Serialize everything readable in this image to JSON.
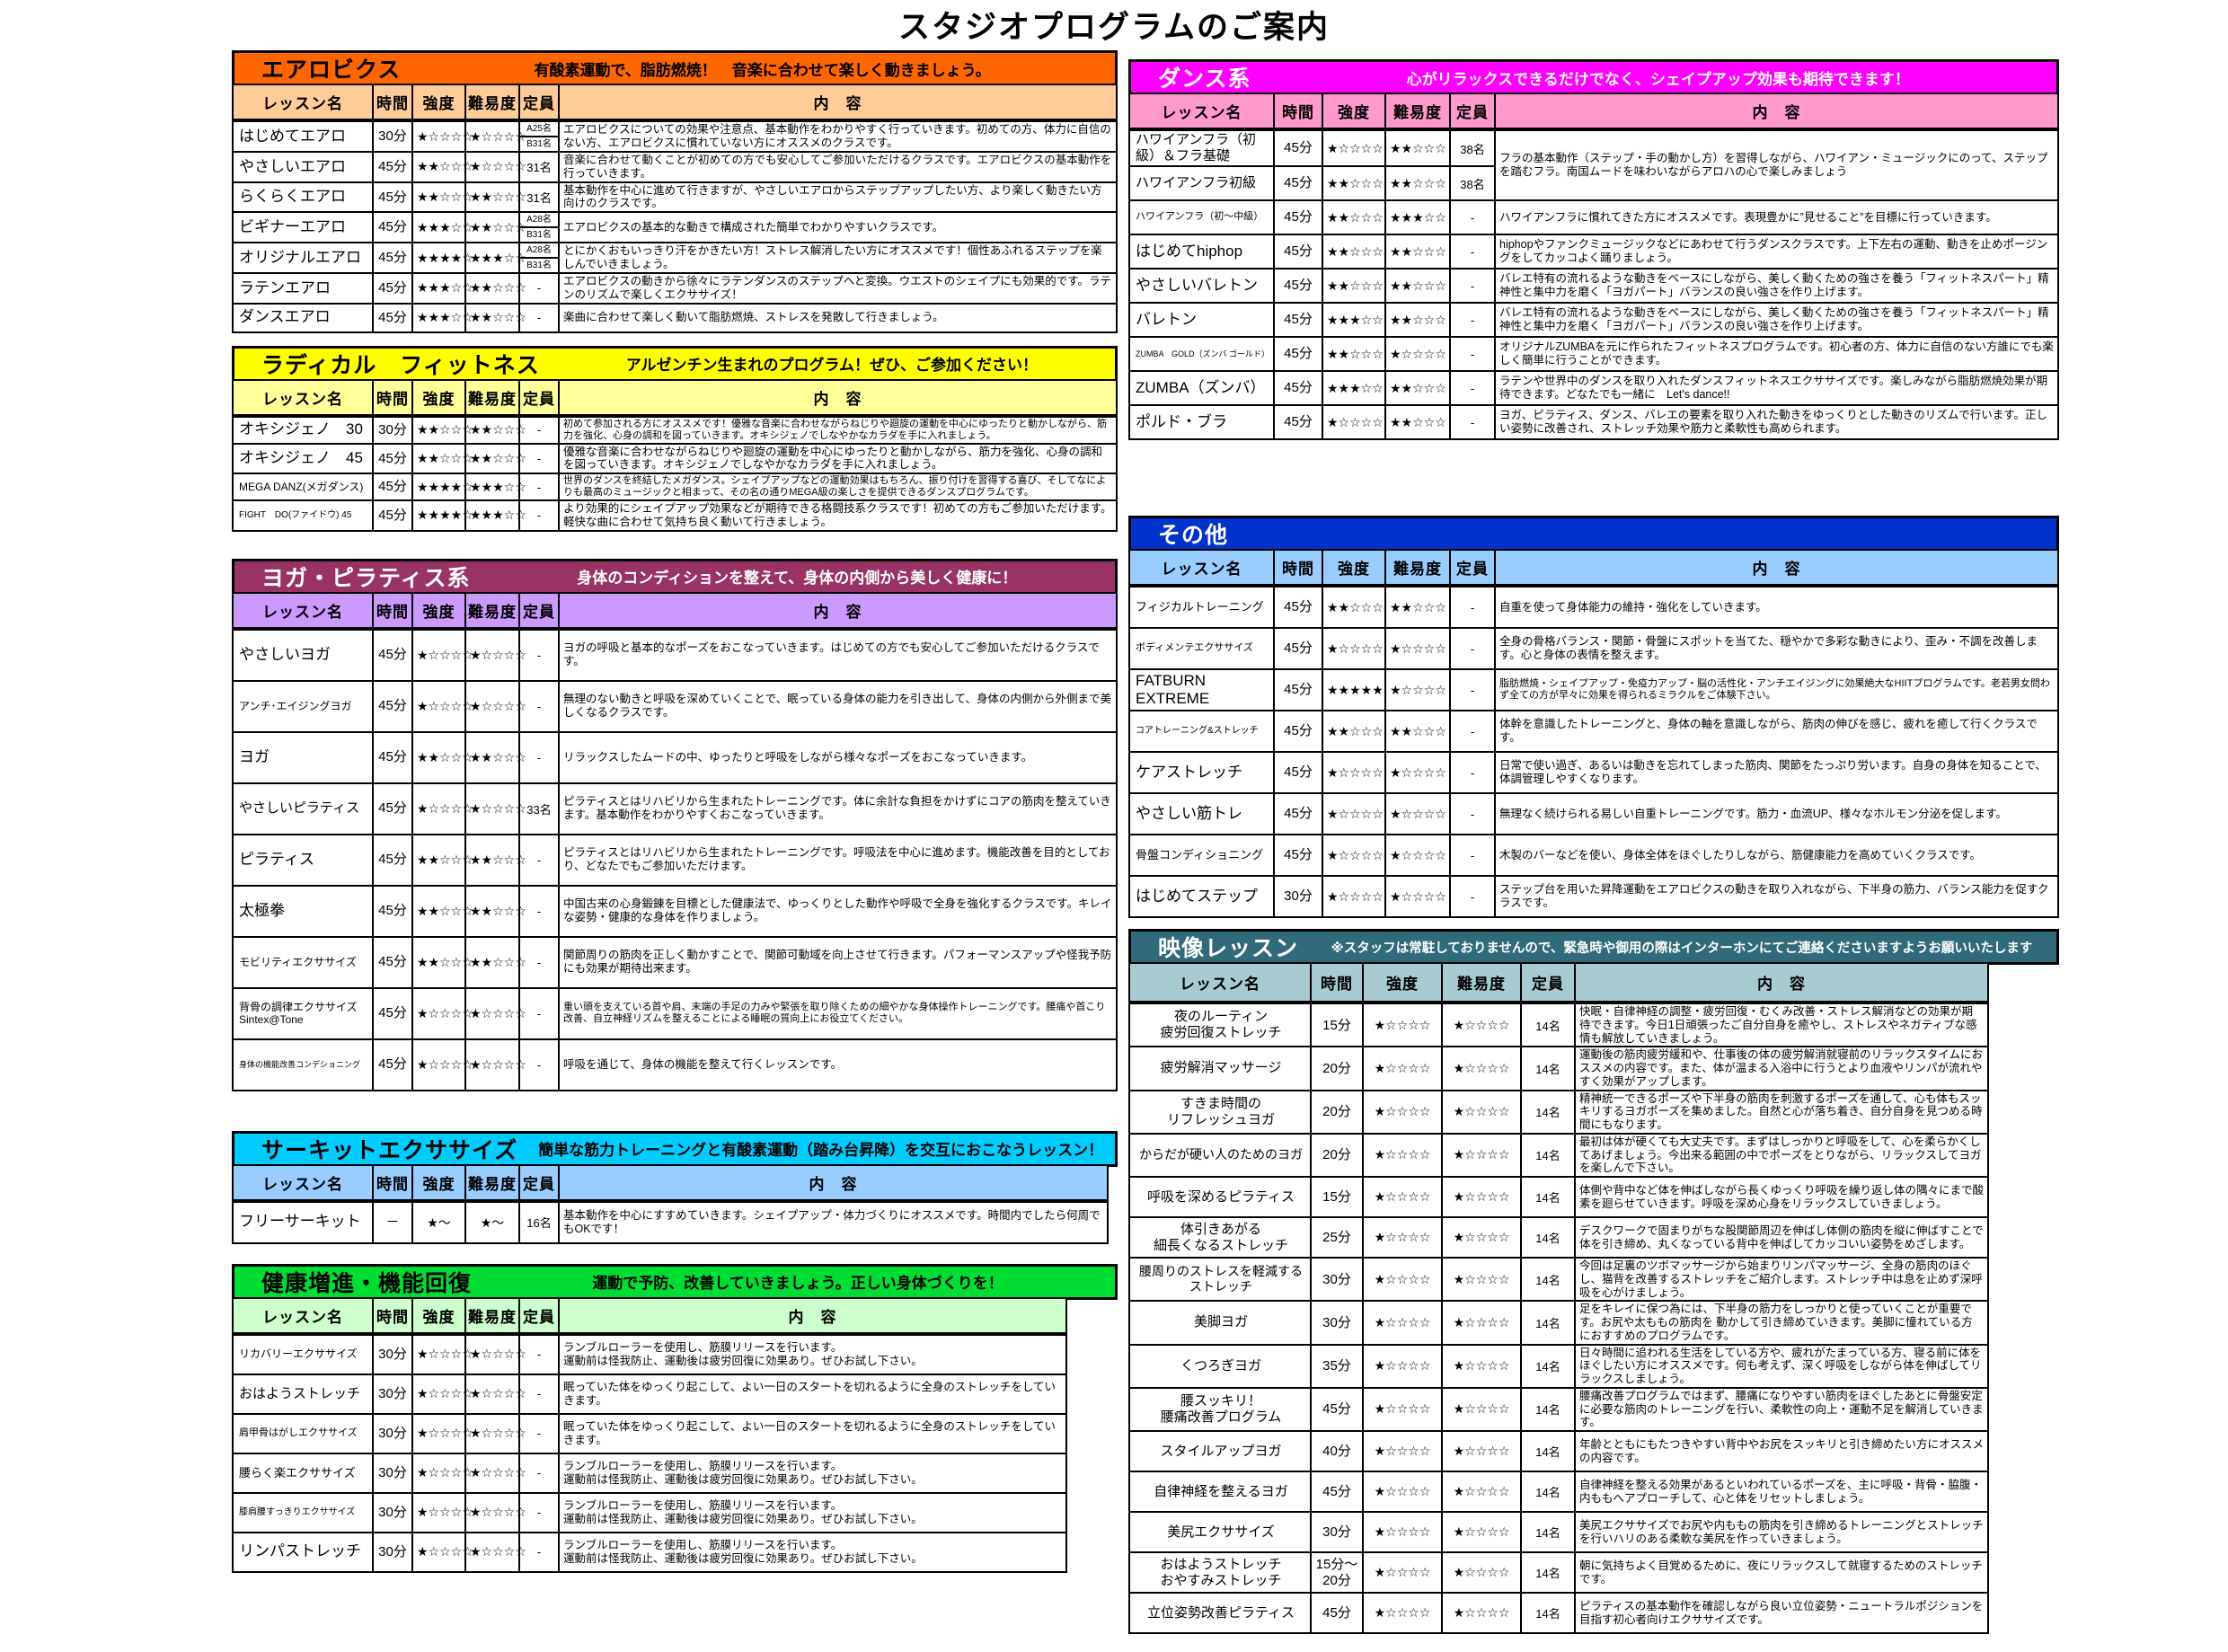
{
  "title": "スタジオプログラムのご案内",
  "columns": [
    "レッスン名",
    "時間",
    "強度",
    "難易度",
    "定員",
    "内　容"
  ],
  "sections": [
    {
      "id": "aerobics",
      "side": "left",
      "title": "エアロビクス",
      "subtitle": "有酸素運動で、脂肪燃焼！　音楽に合わせて楽しく動きましょう。",
      "colors": {
        "header_bg": "#ff6600",
        "header_fg": "#000000",
        "colhead_bg": "#ffcc99",
        "colhead_fg": "#000000"
      },
      "rows": [
        {
          "name": "はじめてエアロ",
          "time": "30分",
          "intensity": "★☆☆☆☆",
          "difficulty": "★☆☆☆☆",
          "capacity": [
            "A25名",
            "B31名"
          ],
          "content": "エアロビクスについての効果や注意点、基本動作をわかりやすく行っていきます。初めての方、体力に自信のない方、エアロビクスに慣れていない方にオススメのクラスです。"
        },
        {
          "name": "やさしいエアロ",
          "time": "45分",
          "intensity": "★★☆☆☆",
          "difficulty": "★☆☆☆☆",
          "capacity": "31名",
          "content": "音楽に合わせて動くことが初めての方でも安心してご参加いただけるクラスです。エアロビクスの基本動作を行っていきます。"
        },
        {
          "name": "らくらくエアロ",
          "time": "45分",
          "intensity": "★★☆☆☆",
          "difficulty": "★★☆☆☆",
          "capacity": "31名",
          "content": "基本動作を中心に進めて行きますが、やさしいエアロからステップアップしたい方、より楽しく動きたい方向けのクラスです。"
        },
        {
          "name": "ビギナーエアロ",
          "time": "45分",
          "intensity": "★★★☆☆",
          "difficulty": "★★☆☆☆",
          "capacity": [
            "A28名",
            "B31名"
          ],
          "content": "エアロビクスの基本的な動きで構成された簡単でわかりやすいクラスです。"
        },
        {
          "name": "オリジナルエアロ",
          "time": "45分",
          "intensity": "★★★★☆",
          "difficulty": "★★★☆☆",
          "capacity": [
            "A28名",
            "B31名"
          ],
          "content": "とにかくおもいっきり汗をかきたい方！ストレス解消したい方にオススメです！個性あふれるステップを楽しんでいきましょう。"
        },
        {
          "name": "ラテンエアロ",
          "time": "45分",
          "intensity": "★★★☆☆",
          "difficulty": "★★☆☆☆",
          "capacity": "-",
          "content": "エアロビクスの動きから徐々にラテンダンスのステップへと変換。ウエストのシェイプにも効果的です。ラテンのリズムで楽しくエクササイズ！"
        },
        {
          "name": "ダンスエアロ",
          "time": "45分",
          "intensity": "★★★☆☆",
          "difficulty": "★★☆☆☆",
          "capacity": "-",
          "content": "楽曲に合わせて楽しく動いて脂肪燃焼、ストレスを発散して行きましょう。"
        }
      ]
    },
    {
      "id": "radical",
      "side": "left",
      "title": "ラディカル　フィットネス",
      "subtitle": "アルゼンチン生まれのプログラム！ぜひ、ご参加ください！",
      "colors": {
        "header_bg": "#ffff00",
        "header_fg": "#000000",
        "colhead_bg": "#ffff99",
        "colhead_fg": "#000000"
      },
      "rows": [
        {
          "name": "オキシジェノ　30",
          "time": "30分",
          "intensity": "★★☆☆☆",
          "difficulty": "★★☆☆☆",
          "capacity": "-",
          "content": "初めて参加される方にオススメです！優雅な音楽に合わせながらねじりや廻旋の運動を中心にゆったりと動かしながら、筋力を強化、心身の調和を図っていきます。オキシジェノでしなやかなカラダを手に入れましょう。"
        },
        {
          "name": "オキシジェノ　45",
          "time": "45分",
          "intensity": "★★☆☆☆",
          "difficulty": "★★☆☆☆",
          "capacity": "-",
          "content": "優雅な音楽に合わせながらねじりや廻旋の運動を中心にゆったりと動かしながら、筋力を強化、心身の調和を図っていきます。オキシジェノでしなやかなカラダを手に入れましょう。"
        },
        {
          "name": "MEGA DANZ(メガダンス)",
          "time": "45分",
          "intensity": "★★★★☆",
          "difficulty": "★★★☆☆",
          "capacity": "-",
          "content": "世界のダンスを終結したメガダンス。シェイプアップなどの運動効果はもちろん、振り付けを習得する喜び、そしてなによりも最高のミュージックと相まって、その名の通りMEGA級の楽しさを提供できるダンスプログラムです。"
        },
        {
          "name": "FIGHT　DO(ファイドウ) 45",
          "time": "45分",
          "intensity": "★★★★☆",
          "difficulty": "★★★☆☆",
          "capacity": "-",
          "content": "より効果的にシェイプアップ効果などが期待できる格闘技系クラスです！初めての方もご参加いただけます。軽快な曲に合わせて気持ち良く動いて行きましょう。"
        }
      ]
    },
    {
      "id": "yoga",
      "side": "left",
      "title": "ヨガ・ピラティス系",
      "subtitle": "身体のコンディションを整えて、身体の内側から美しく健康に！",
      "colors": {
        "header_bg": "#993366",
        "header_fg": "#ffffff",
        "colhead_bg": "#cc99ff",
        "colhead_fg": "#000000"
      },
      "rows": [
        {
          "name": "やさしいヨガ",
          "time": "45分",
          "intensity": "★☆☆☆☆",
          "difficulty": "★☆☆☆☆",
          "capacity": "-",
          "content": "ヨガの呼吸と基本的なポーズをおこなっていきます。はじめての方でも安心してご参加いただけるクラスです。"
        },
        {
          "name": "アンチ･エイジングヨガ",
          "time": "45分",
          "intensity": "★☆☆☆☆",
          "difficulty": "★☆☆☆☆",
          "capacity": "-",
          "content": "無理のない動きと呼吸を深めていくことで、眠っている身体の能力を引き出して、身体の内側から外側まで美しくなるクラスです。"
        },
        {
          "name": "ヨガ",
          "time": "45分",
          "intensity": "★★☆☆☆",
          "difficulty": "★★☆☆☆",
          "capacity": "-",
          "content": "リラックスしたムードの中、ゆったりと呼吸をしながら様々なポーズをおこなっていきます。"
        },
        {
          "name": "やさしいピラティス",
          "time": "45分",
          "intensity": "★☆☆☆☆",
          "difficulty": "★☆☆☆☆",
          "capacity": "33名",
          "content": "ピラティスとはリハビリから生まれたトレーニングです。体に余計な負担をかけずにコアの筋肉を整えていきます。基本動作をわかりやすくおこなっていきます。"
        },
        {
          "name": "ピラティス",
          "time": "45分",
          "intensity": "★★☆☆☆",
          "difficulty": "★★☆☆☆",
          "capacity": "-",
          "content": "ピラティスとはリハビリから生まれたトレーニングです。呼吸法を中心に進めます。機能改善を目的としており、どなたでもご参加いただけます。"
        },
        {
          "name": "太極拳",
          "time": "45分",
          "intensity": "★★☆☆☆",
          "difficulty": "★★☆☆☆",
          "capacity": "-",
          "content": "中国古来の心身鍛錬を目標とした健康法で、ゆっくりとした動作や呼吸で全身を強化するクラスです。キレイな姿勢・健康的な身体を作りましょう。"
        },
        {
          "name": "モビリティエクササイズ",
          "time": "45分",
          "intensity": "★★☆☆☆",
          "difficulty": "★★☆☆☆",
          "capacity": "-",
          "content": "関節周りの筋肉を正しく動かすことで、関節可動域を向上させて行きます。パフォーマンスアップや怪我予防にも効果が期待出来ます。"
        },
        {
          "name": "背骨の調律エクササイズ\nSintex@Tone",
          "time": "45分",
          "intensity": "★☆☆☆☆",
          "difficulty": "★☆☆☆☆",
          "capacity": "-",
          "content": "重い頭を支えている首や肩、末端の手足の力みや緊張を取り除くための細やかな身体操作トレーニングです。腰痛や首こり改善、自立神経リズムを整えることによる睡眠の質向上にお役立てください。"
        },
        {
          "name": "身体の機能改善コンデショニング",
          "time": "45分",
          "intensity": "★☆☆☆☆",
          "difficulty": "★☆☆☆☆",
          "capacity": "-",
          "content": "呼吸を通じて、身体の機能を整えて行くレッスンです。"
        }
      ]
    },
    {
      "id": "circuit",
      "side": "left",
      "title": "サーキットエクササイズ",
      "subtitle": "簡単な筋力トレーニングと有酸素運動（踏み台昇降）を交互におこなうレッスン！",
      "colors": {
        "header_bg": "#00ccff",
        "header_fg": "#000000",
        "colhead_bg": "#99ccff",
        "colhead_fg": "#000000"
      },
      "rows": [
        {
          "name": "フリーサーキット",
          "time": "－",
          "intensity": "★～",
          "difficulty": "★～",
          "capacity": "16名",
          "content": "基本動作を中心にすすめていきます。シェイプアップ・体力づくりにオススメです。時間内でしたら何周でもOKです！"
        }
      ]
    },
    {
      "id": "health",
      "side": "left",
      "title": "健康増進・機能回復",
      "subtitle": "運動で予防、改善していきましょう。正しい身体づくりを！",
      "colors": {
        "header_bg": "#00dd33",
        "header_fg": "#000000",
        "colhead_bg": "#ccffcc",
        "colhead_fg": "#000000"
      },
      "rows": [
        {
          "name": "リカバリーエクササイズ",
          "time": "30分",
          "intensity": "★☆☆☆☆",
          "difficulty": "★☆☆☆☆",
          "capacity": "-",
          "content": "ランブルローラーを使用し、筋膜リリースを行います。\n運動前は怪我防止、運動後は疲労回復に効果あり。ぜひお試し下さい。"
        },
        {
          "name": "おはようストレッチ",
          "time": "30分",
          "intensity": "★☆☆☆☆",
          "difficulty": "★☆☆☆☆",
          "capacity": "-",
          "content": "眠っていた体をゆっくり起こして、よい一日のスタートを切れるように全身のストレッチをしていきます。"
        },
        {
          "name": "肩甲骨はがしエクササイズ",
          "time": "30分",
          "intensity": "★☆☆☆☆",
          "difficulty": "★☆☆☆☆",
          "capacity": "-",
          "content": "眠っていた体をゆっくり起こして、よい一日のスタートを切れるように全身のストレッチをしていきます。"
        },
        {
          "name": "腰らく楽エクササイズ",
          "time": "30分",
          "intensity": "★☆☆☆☆",
          "difficulty": "★☆☆☆☆",
          "capacity": "-",
          "content": "ランブルローラーを使用し、筋膜リリースを行います。\n運動前は怪我防止、運動後は疲労回復に効果あり。ぜひお試し下さい。"
        },
        {
          "name": "膝肩腰すっきりエクササイズ",
          "time": "30分",
          "intensity": "★☆☆☆☆",
          "difficulty": "★☆☆☆☆",
          "capacity": "-",
          "content": "ランブルローラーを使用し、筋膜リリースを行います。\n運動前は怪我防止、運動後は疲労回復に効果あり。ぜひお試し下さい。"
        },
        {
          "name": "リンパストレッチ",
          "time": "30分",
          "intensity": "★☆☆☆☆",
          "difficulty": "★☆☆☆☆",
          "capacity": "-",
          "content": "ランブルローラーを使用し、筋膜リリースを行います。\n運動前は怪我防止、運動後は疲労回復に効果あり。ぜひお試し下さい。"
        }
      ]
    },
    {
      "id": "dance",
      "side": "right",
      "title": "ダンス系",
      "subtitle": "心がリラックスできるだけでなく、シェイプアップ効果も期待できます！",
      "colors": {
        "header_bg": "#ff00ff",
        "header_fg": "#ffffff",
        "colhead_bg": "#ff99cc",
        "colhead_fg": "#000000"
      },
      "rows": [
        {
          "name": "ハワイアンフラ（初\n級）＆フラ基礎",
          "time": "45分",
          "intensity": "★☆☆☆☆",
          "difficulty": "★★☆☆☆",
          "capacity": "38名",
          "content": "フラの基本動作（ステップ・手の動かし方）を習得しながら、ハワイアン・ミュージックにのって、ステップを踏むフラ。南国ムードを味わいながらアロハの心で楽しみましょう",
          "content_rowspan": 2
        },
        {
          "name": "ハワイアンフラ初級",
          "time": "45分",
          "intensity": "★★☆☆☆",
          "difficulty": "★★☆☆☆",
          "capacity": "38名",
          "content": null
        },
        {
          "name": "ハワイアンフラ（初～中級）",
          "time": "45分",
          "intensity": "★★☆☆☆",
          "difficulty": "★★★☆☆",
          "capacity": "-",
          "content": "ハワイアンフラに慣れてきた方にオススメです。表現豊かに”見せること”を目標に行っていきます。"
        },
        {
          "name": "はじめてhiphop",
          "time": "45分",
          "intensity": "★★☆☆☆",
          "difficulty": "★★☆☆☆",
          "capacity": "-",
          "content": "hiphopやファンクミュージックなどにあわせて行うダンスクラスです。上下左右の運動、動きを止めポージングをしてカッコよく踊りましょう。"
        },
        {
          "name": "やさしいバレトン",
          "time": "45分",
          "intensity": "★★☆☆☆",
          "difficulty": "★★☆☆☆",
          "capacity": "-",
          "content": "バレエ特有の流れるような動きをベースにしながら、美しく動くための強さを養う「フィットネスパート」精神性と集中力を磨く「ヨガパート」バランスの良い強さを作り上げます。"
        },
        {
          "name": "バレトン",
          "time": "45分",
          "intensity": "★★★☆☆",
          "difficulty": "★★☆☆☆",
          "capacity": "-",
          "content": "バレエ特有の流れるような動きをベースにしながら、美しく動くための強さを養う「フィットネスパート」精神性と集中力を磨く「ヨガパート」バランスの良い強さを作り上げます。"
        },
        {
          "name": "ZUMBA　GOLD（ズンバ ゴールド）",
          "time": "45分",
          "intensity": "★★☆☆☆",
          "difficulty": "★☆☆☆☆",
          "capacity": "-",
          "content": "オリジナルZUMBAを元に作られたフィットネスプログラムです。初心者の方、体力に自信のない方誰にでも楽しく簡単に行うことができます。"
        },
        {
          "name": "ZUMBA（ズンバ）",
          "time": "45分",
          "intensity": "★★★☆☆",
          "difficulty": "★★☆☆☆",
          "capacity": "-",
          "content": "ラテンや世界中のダンスを取り入れたダンスフィットネスエクササイズです。楽しみながら脂肪燃焼効果が期待できます。どなたでも一緒に　Let's dance!!"
        },
        {
          "name": "ポルド・ブラ",
          "time": "45分",
          "intensity": "★☆☆☆☆",
          "difficulty": "★★☆☆☆",
          "capacity": "-",
          "content": "ヨガ、ピラティス、ダンス、バレエの要素を取り入れた動きをゆっくりとした動きのリズムで行います。正しい姿勢に改善され、ストレッチ効果や筋力と柔軟性も高められます。"
        }
      ]
    },
    {
      "id": "others",
      "side": "right",
      "title": "その他",
      "subtitle": "",
      "colors": {
        "header_bg": "#0033cc",
        "header_fg": "#ffffff",
        "colhead_bg": "#99ccff",
        "colhead_fg": "#000000"
      },
      "rows": [
        {
          "name": "フィジカルトレーニング",
          "time": "45分",
          "intensity": "★★☆☆☆",
          "difficulty": "★★☆☆☆",
          "capacity": "-",
          "content": "自重を使って身体能力の維持・強化をしていきます。"
        },
        {
          "name": "ボディメンテエクササイズ",
          "time": "45分",
          "intensity": "★☆☆☆☆",
          "difficulty": "★☆☆☆☆",
          "capacity": "-",
          "content": "全身の骨格バランス・関節・骨盤にスポットを当てた、穏やかで多彩な動きにより、歪み・不調を改善します。心と身体の表情を整えます。"
        },
        {
          "name": "FATBURN EXTREME",
          "time": "45分",
          "intensity": "★★★★★",
          "difficulty": "★☆☆☆☆",
          "capacity": "-",
          "content": "脂肪燃焼・シェイプアップ・免疫力アップ・脳の活性化・アンチエイジングに効果絶大なHIITプログラムです。老若男女問わず全ての方が早々に効果を得られるミラクルをご体験下さい。"
        },
        {
          "name": "コアトレーニング&ストレッチ",
          "time": "45分",
          "intensity": "★★☆☆☆",
          "difficulty": "★★☆☆☆",
          "capacity": "-",
          "content": "体幹を意識したトレーニングと、身体の軸を意識しながら、筋肉の伸びを感じ、疲れを癒して行くクラスです。"
        },
        {
          "name": "ケアストレッチ",
          "time": "45分",
          "intensity": "★☆☆☆☆",
          "difficulty": "★☆☆☆☆",
          "capacity": "-",
          "content": "日常で使い過ぎ、あるいは動きを忘れてしまった筋肉、関節をたっぷり労います。自身の身体を知ることで、体調管理しやすくなります。"
        },
        {
          "name": "やさしい筋トレ",
          "time": "45分",
          "intensity": "★☆☆☆☆",
          "difficulty": "★☆☆☆☆",
          "capacity": "-",
          "content": "無理なく続けられる易しい自重トレーニングです。筋力・血流UP、様々なホルモン分泌を促します。"
        },
        {
          "name": "骨盤コンディショニング",
          "time": "45分",
          "intensity": "★☆☆☆☆",
          "difficulty": "★☆☆☆☆",
          "capacity": "-",
          "content": "木製のバーなどを使い、身体全体をほぐしたりしながら、筋健康能力を高めていくクラスです。"
        },
        {
          "name": "はじめてステップ",
          "time": "30分",
          "intensity": "★☆☆☆☆",
          "difficulty": "★☆☆☆☆",
          "capacity": "-",
          "content": "ステップ台を用いた昇降運動をエアロビクスの動きを取り入れながら、下半身の筋力、バランス能力を促すクラスです。"
        }
      ]
    },
    {
      "id": "video",
      "side": "right",
      "title": "映像レッスン",
      "subtitle": "※スタッフは常駐しておりませんので、緊急時や御用の際はインターホンにてご連絡くださいますようお願いいたします",
      "colors": {
        "header_bg": "#316a7a",
        "header_fg": "#ffffff",
        "colhead_bg": "#a8cbd2",
        "colhead_fg": "#000000"
      },
      "rows": [
        {
          "name": "夜のルーティン\n疲労回復ストレッチ",
          "time": "15分",
          "intensity": "★☆☆☆☆",
          "difficulty": "★☆☆☆☆",
          "capacity": "14名",
          "content": "快眠・自律神経の調整・疲労回復・むくみ改善・ストレス解消などの効果が期待できます。今日1日頑張ったご自分自身を癒やし、ストレスやネガティブな感情も解放していきましょう。"
        },
        {
          "name": "疲労解消マッサージ",
          "time": "20分",
          "intensity": "★☆☆☆☆",
          "difficulty": "★☆☆☆☆",
          "capacity": "14名",
          "content": "運動後の筋肉疲労緩和や、仕事後の体の疲労解消就寝前のリラックスタイムにおススメの内容です。また、体が温まる入浴中に行うとより血液やリンパが流れやすく効果がアップします。"
        },
        {
          "name": "すきま時間の\nリフレッシュヨガ",
          "time": "20分",
          "intensity": "★☆☆☆☆",
          "difficulty": "★☆☆☆☆",
          "capacity": "14名",
          "content": "精神統一できるポーズや下半身の筋肉を刺激するポーズを通して、心も体もスッキリするヨガポーズを集めました。自然と心が落ち着き、自分自身を見つめる時間にもなります。"
        },
        {
          "name": "からだが硬い人のためのヨガ",
          "time": "20分",
          "intensity": "★☆☆☆☆",
          "difficulty": "★☆☆☆☆",
          "capacity": "14名",
          "content": "最初は体が硬くても大丈夫です。まずはしっかりと呼吸をして、心を柔らかくしてあげましょう。今出来る範囲の中でポーズをとりながら、リラックスしてヨガを楽しんで下さい。"
        },
        {
          "name": "呼吸を深めるピラティス",
          "time": "15分",
          "intensity": "★☆☆☆☆",
          "difficulty": "★☆☆☆☆",
          "capacity": "14名",
          "content": "体側や背中など体を伸ばしながら長くゆっくり呼吸を繰り返し体の隅々にまで酸素を廻らせていきます。呼吸を深め心身をリラックスしていきましょう。"
        },
        {
          "name": "体引きあがる\n細長くなるストレッチ",
          "time": "25分",
          "intensity": "★☆☆☆☆",
          "difficulty": "★☆☆☆☆",
          "capacity": "14名",
          "content": "デスクワークで固まりがちな股関節周辺を伸ばし体側の筋肉を縦に伸ばすことで体を引き締め、丸くなっている背中を伸ばしてカッコいい姿勢をめざします。"
        },
        {
          "name": "腰周りのストレスを軽減する\nストレッチ",
          "time": "30分",
          "intensity": "★☆☆☆☆",
          "difficulty": "★☆☆☆☆",
          "capacity": "14名",
          "content": "今回は足裏のツボマッサージから始まりリンパマッサージ、全身の筋肉のほぐし、猫背を改善するストレッチをご紹介します。ストレッチ中は息を止めず深呼吸を心がけましょう。"
        },
        {
          "name": "美脚ヨガ",
          "time": "30分",
          "intensity": "★☆☆☆☆",
          "difficulty": "★☆☆☆☆",
          "capacity": "14名",
          "content": "足をキレイに保つ為には、下半身の筋力をしっかりと使っていくことが重要です。お尻や太ももの筋肉を 動かして引き締めていきます。美脚に憧れている方におすすめのプログラムです。"
        },
        {
          "name": "くつろぎヨガ",
          "time": "35分",
          "intensity": "★☆☆☆☆",
          "difficulty": "★☆☆☆☆",
          "capacity": "14名",
          "content": "日々時間に追われる生活をしている方や、疲れがたまっている方、寝る前に体をほぐしたい方にオススメです。何も考えず、深く呼吸をしながら体を伸ばしてリラックスしましょう。"
        },
        {
          "name": "腰スッキリ！\n腰痛改善プログラム",
          "time": "45分",
          "intensity": "★☆☆☆☆",
          "difficulty": "★☆☆☆☆",
          "capacity": "14名",
          "content": "腰痛改善プログラムではまず、腰痛になりやすい筋肉をほぐしたあとに骨盤安定に必要な筋肉のトレーニングを行い、柔軟性の向上・運動不足を解消していきます。"
        },
        {
          "name": "スタイルアップヨガ",
          "time": "40分",
          "intensity": "★☆☆☆☆",
          "difficulty": "★☆☆☆☆",
          "capacity": "14名",
          "content": "年齢とともにもたつきやすい背中やお尻をスッキリと引き締めたい方にオススメの内容です。"
        },
        {
          "name": "自律神経を整えるヨガ",
          "time": "45分",
          "intensity": "★☆☆☆☆",
          "difficulty": "★☆☆☆☆",
          "capacity": "14名",
          "content": "自律神経を整える効果があるといわれているポーズを、主に呼吸・背骨・脇腹・内ももへアプローチして、心と体をリセットしましょう。"
        },
        {
          "name": "美尻エクササイズ",
          "time": "30分",
          "intensity": "★☆☆☆☆",
          "difficulty": "★☆☆☆☆",
          "capacity": "14名",
          "content": "美尻エクササイズでお尻や内ももの筋肉を引き締めるトレーニングとストレッチを行いハリのある柔軟な美尻を作っていきましょう。"
        },
        {
          "name": "おはようストレッチ\nおやすみストレッチ",
          "time": "15分～\n20分",
          "intensity": "★☆☆☆☆",
          "difficulty": "★☆☆☆☆",
          "capacity": "14名",
          "content": "朝に気持ちよく目覚めるために、夜にリラックスして就寝するためのストレッチです。"
        },
        {
          "name": "立位姿勢改善ピラティス",
          "time": "45分",
          "intensity": "★☆☆☆☆",
          "difficulty": "★☆☆☆☆",
          "capacity": "14名",
          "content": "ピラティスの基本動作を確認しながら良い立位姿勢・ニュートラルポジションを目指す初心者向けエクササイズです。"
        }
      ]
    }
  ]
}
